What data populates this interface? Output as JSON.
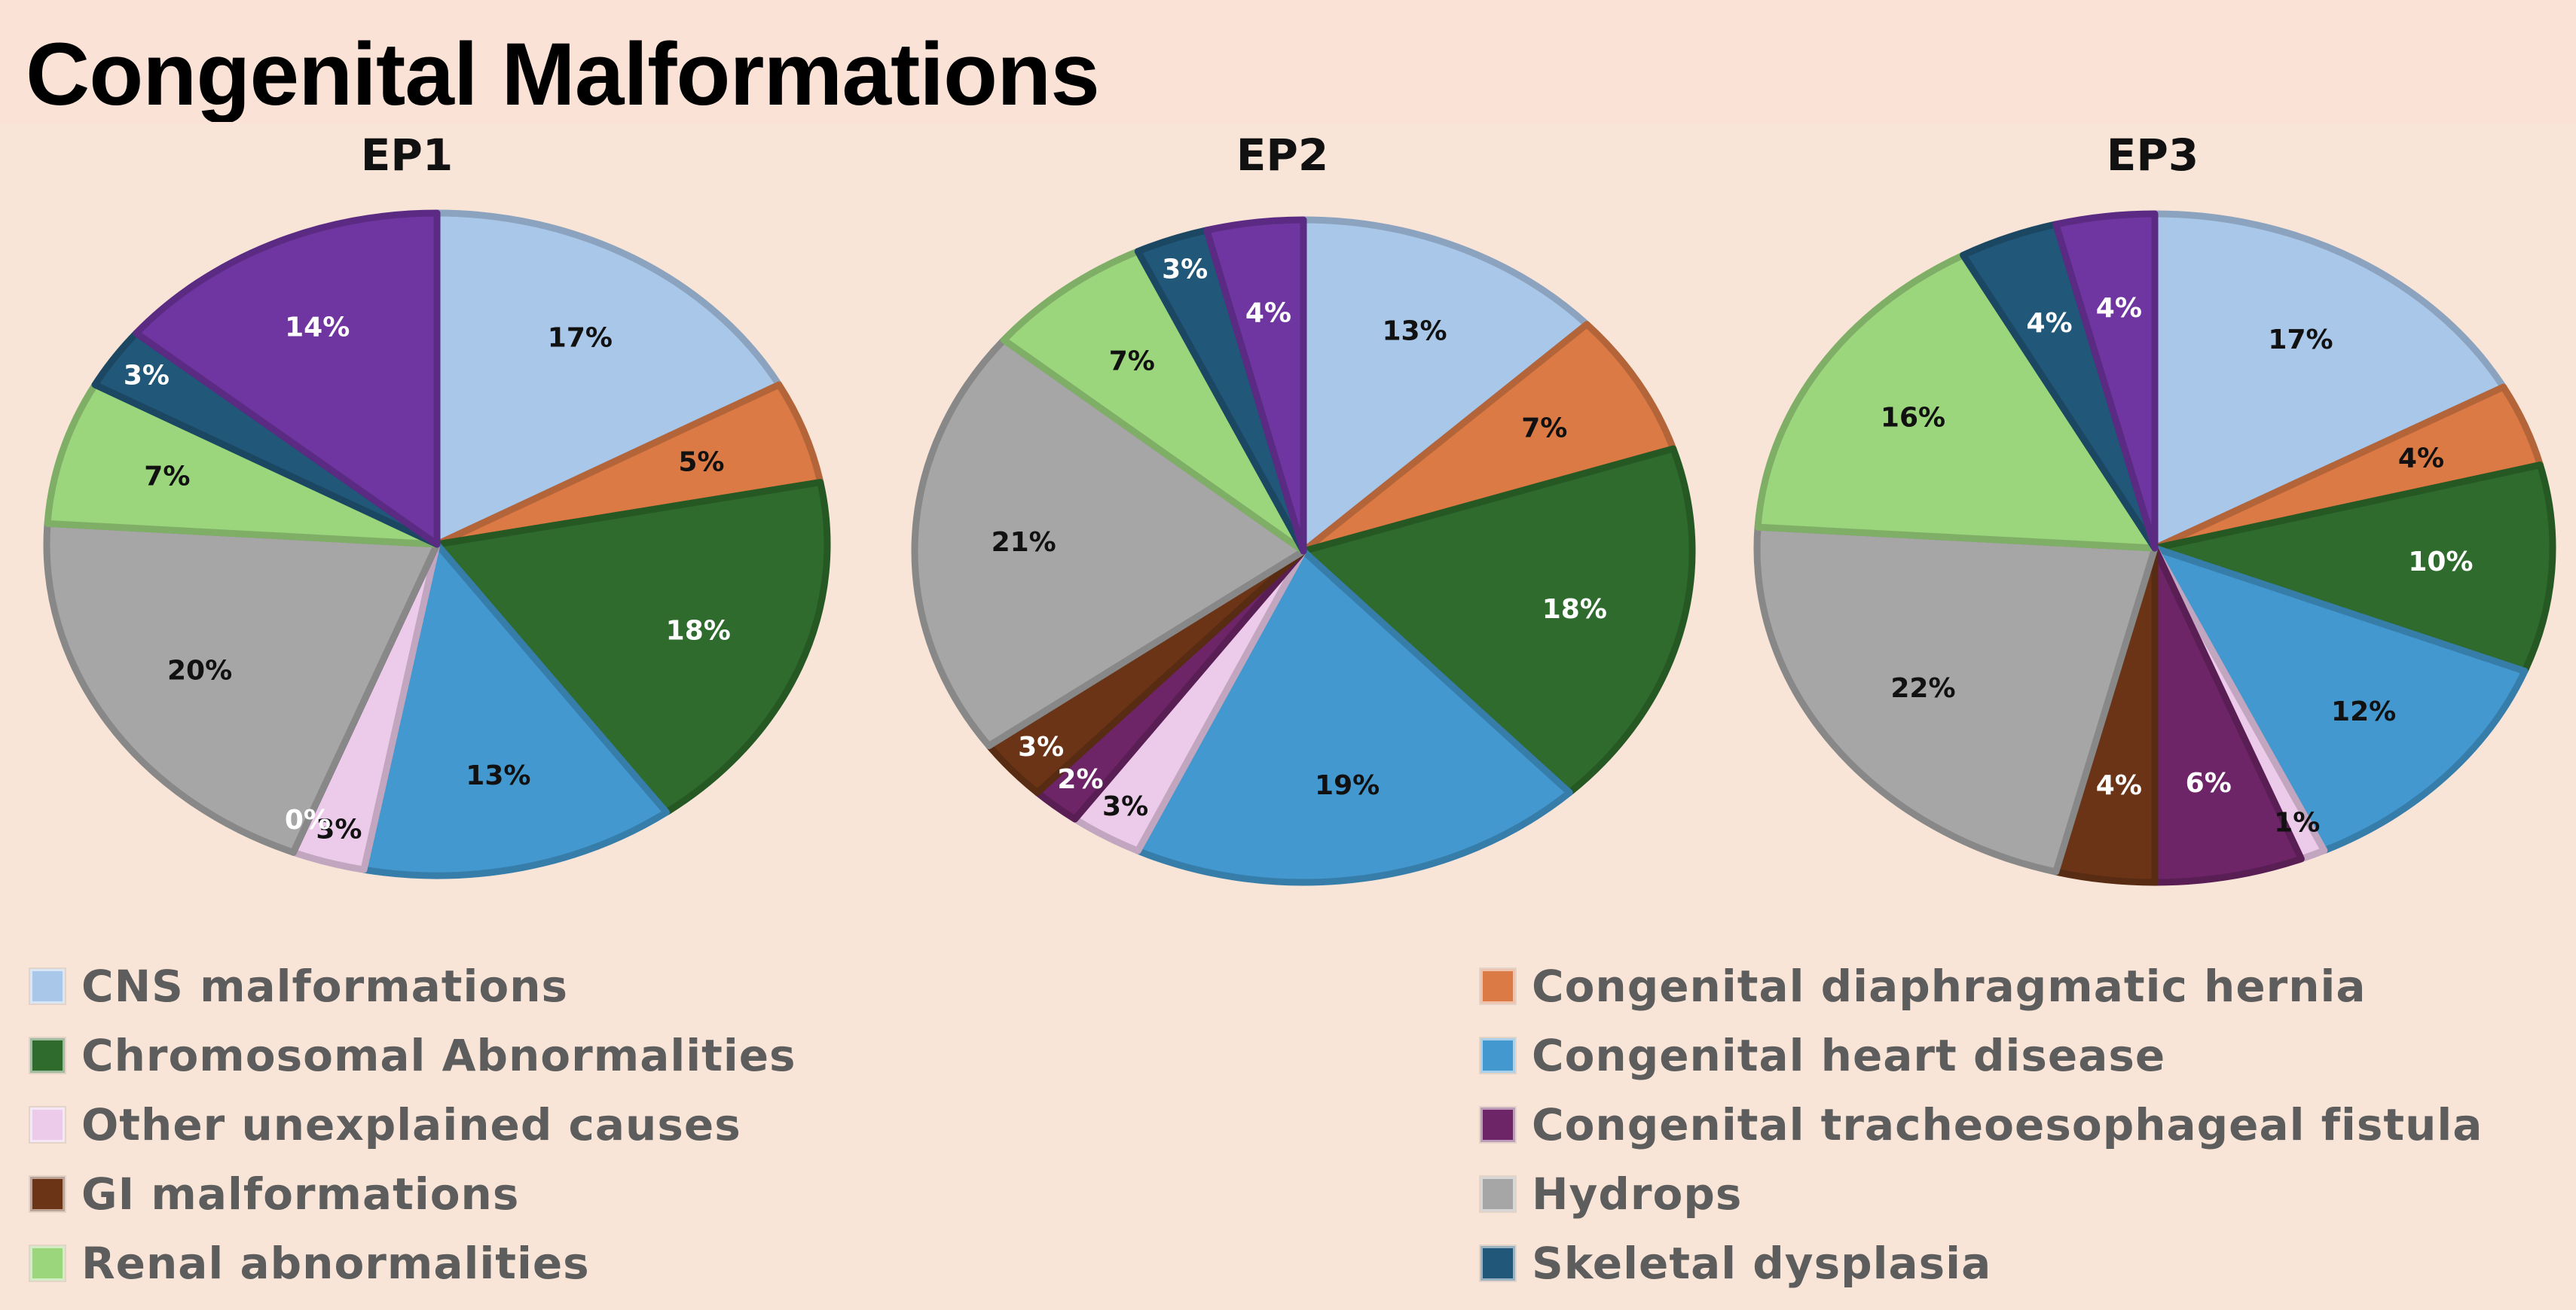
{
  "page": {
    "title": "Congenital Malformations"
  },
  "categories": [
    {
      "key": "cns",
      "label": "CNS malformations",
      "color": "#a9c7e8"
    },
    {
      "key": "cdh",
      "label": "Congenital diaphragmatic hernia",
      "color": "#dc7a45"
    },
    {
      "key": "chrom",
      "label": "Chromosomal Abnormalities",
      "color": "#2e6b2c"
    },
    {
      "key": "chd",
      "label": "Congenital heart disease",
      "color": "#4399cf"
    },
    {
      "key": "other",
      "label": "Other unexplained causes",
      "color": "#eccbea"
    },
    {
      "key": "tef",
      "label": "Congenital tracheoesophageal fistula",
      "color": "#6d2567"
    },
    {
      "key": "gi",
      "label": "GI malformations",
      "color": "#6b3417"
    },
    {
      "key": "hydrops",
      "label": "Hydrops",
      "color": "#a6a6a6"
    },
    {
      "key": "renal",
      "label": "Renal abnormalities",
      "color": "#9bd67c"
    },
    {
      "key": "skeletal",
      "label": "Skeletal dysplasia",
      "color": "#215779"
    },
    {
      "key": "purple",
      "label": "",
      "color": "#6f35a0"
    }
  ],
  "chart_data": [
    {
      "type": "pie",
      "title": "EP1",
      "slices": [
        {
          "category": "cns",
          "value": 17,
          "label": "17%"
        },
        {
          "category": "cdh",
          "value": 5,
          "label": "5%"
        },
        {
          "category": "chrom",
          "value": 18,
          "label": "18%"
        },
        {
          "category": "chd",
          "value": 13,
          "label": "13%"
        },
        {
          "category": "other",
          "value": 3,
          "label": "3%"
        },
        {
          "category": "tef",
          "value": 0,
          "label": "0%"
        },
        {
          "category": "hydrops",
          "value": 20,
          "label": "20%"
        },
        {
          "category": "renal",
          "value": 7,
          "label": "7%"
        },
        {
          "category": "skeletal",
          "value": 3,
          "label": "3%"
        },
        {
          "category": "purple",
          "value": 14,
          "label": "14%"
        }
      ]
    },
    {
      "type": "pie",
      "title": "EP2",
      "slices": [
        {
          "category": "cns",
          "value": 13,
          "label": "13%"
        },
        {
          "category": "cdh",
          "value": 7,
          "label": "7%"
        },
        {
          "category": "chrom",
          "value": 18,
          "label": "18%"
        },
        {
          "category": "chd",
          "value": 19,
          "label": "19%"
        },
        {
          "category": "other",
          "value": 3,
          "label": "3%"
        },
        {
          "category": "tef",
          "value": 2,
          "label": "2%"
        },
        {
          "category": "gi",
          "value": 3,
          "label": "3%"
        },
        {
          "category": "hydrops",
          "value": 21,
          "label": "21%"
        },
        {
          "category": "renal",
          "value": 7,
          "label": "7%"
        },
        {
          "category": "skeletal",
          "value": 3,
          "label": "3%"
        },
        {
          "category": "purple",
          "value": 4,
          "label": "4%"
        }
      ]
    },
    {
      "type": "pie",
      "title": "EP3",
      "slices": [
        {
          "category": "cns",
          "value": 17,
          "label": "17%"
        },
        {
          "category": "cdh",
          "value": 4,
          "label": "4%"
        },
        {
          "category": "chrom",
          "value": 10,
          "label": "10%"
        },
        {
          "category": "chd",
          "value": 12,
          "label": "12%"
        },
        {
          "category": "other",
          "value": 1,
          "label": "1%"
        },
        {
          "category": "tef",
          "value": 6,
          "label": "6%"
        },
        {
          "category": "gi",
          "value": 4,
          "label": "4%"
        },
        {
          "category": "hydrops",
          "value": 22,
          "label": "22%"
        },
        {
          "category": "renal",
          "value": 16,
          "label": "16%"
        },
        {
          "category": "skeletal",
          "value": 4,
          "label": "4%"
        },
        {
          "category": "purple",
          "value": 4,
          "label": "4%"
        }
      ]
    }
  ],
  "legend": {
    "placement": "bottom",
    "items": [
      "cns",
      "cdh",
      "chrom",
      "chd",
      "other",
      "tef",
      "gi",
      "hydrops",
      "renal",
      "skeletal"
    ]
  }
}
